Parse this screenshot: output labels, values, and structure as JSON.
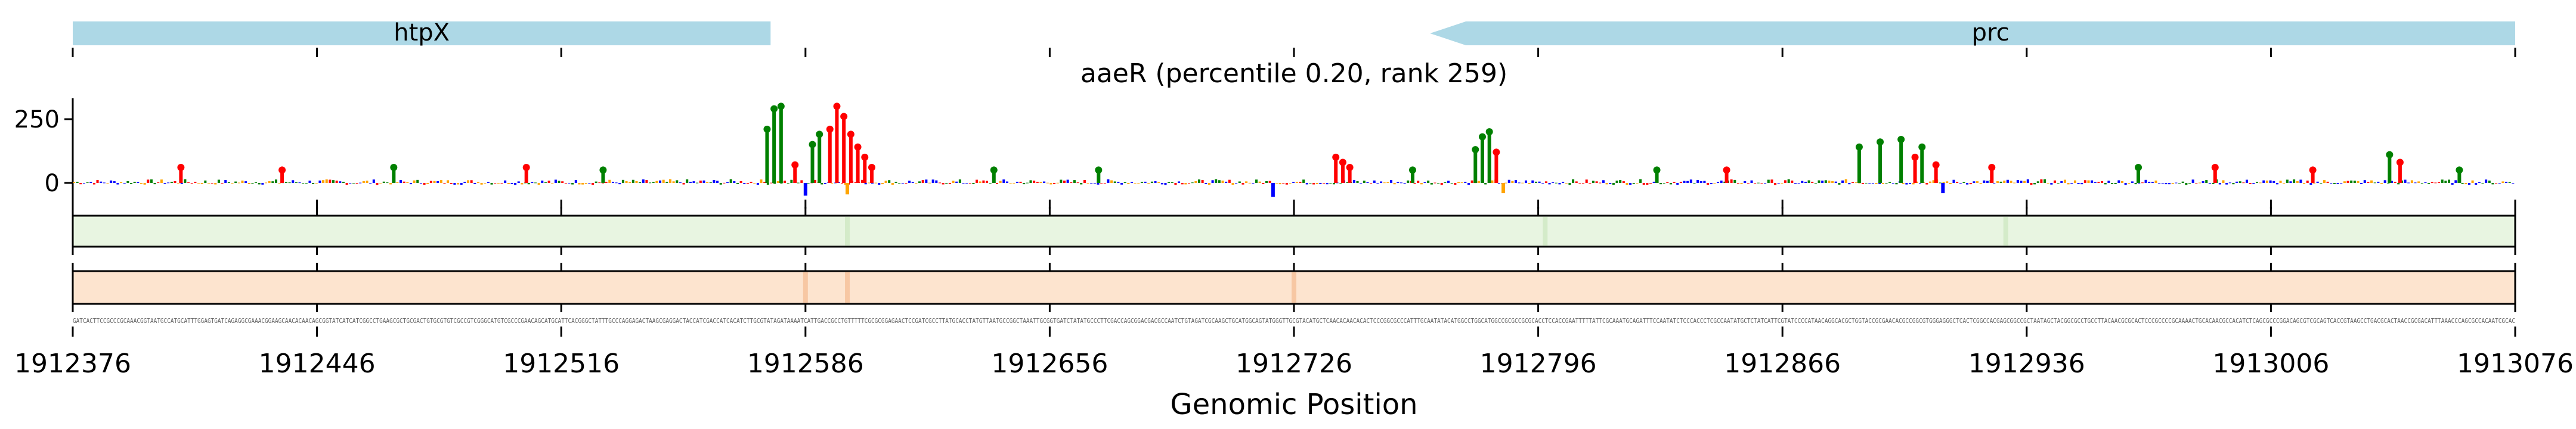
{
  "chart_data": {
    "type": "sequence-logo-track",
    "title": "aaeR (percentile 0.20, rank 259)",
    "xlabel": "Genomic Position",
    "ylabel": "",
    "xlim": [
      1912376,
      1913076
    ],
    "x_ticks": [
      "1912376",
      "1912446",
      "1912516",
      "1912586",
      "1912656",
      "1912726",
      "1912796",
      "1912866",
      "1912936",
      "1913006",
      "1913076"
    ],
    "ylim": [
      -40,
      360
    ],
    "y_ticks": [
      "250",
      "0"
    ],
    "genes": [
      {
        "name": "htpX",
        "start": 1912376,
        "end": 1912576,
        "strand": "+",
        "color": "#add8e6"
      },
      {
        "name": "prc",
        "start": 1912765,
        "end": 1913076,
        "strand": "-",
        "color": "#add8e6"
      }
    ],
    "base_colors": {
      "A": "#008000",
      "C": "#0000ff",
      "G": "#ffa500",
      "T": "#ff0000"
    },
    "peaks": [
      {
        "x": 1912575,
        "y": 220,
        "base": "A"
      },
      {
        "x": 1912577,
        "y": 300,
        "base": "A"
      },
      {
        "x": 1912579,
        "y": 310,
        "base": "A"
      },
      {
        "x": 1912583,
        "y": 80,
        "base": "T"
      },
      {
        "x": 1912588,
        "y": 160,
        "base": "A"
      },
      {
        "x": 1912590,
        "y": 200,
        "base": "A"
      },
      {
        "x": 1912593,
        "y": 220,
        "base": "T"
      },
      {
        "x": 1912595,
        "y": 310,
        "base": "T"
      },
      {
        "x": 1912597,
        "y": 270,
        "base": "T"
      },
      {
        "x": 1912599,
        "y": 200,
        "base": "T"
      },
      {
        "x": 1912601,
        "y": 150,
        "base": "T"
      },
      {
        "x": 1912603,
        "y": 110,
        "base": "T"
      },
      {
        "x": 1912605,
        "y": 70,
        "base": "T"
      },
      {
        "x": 1912586,
        "y": -50,
        "base": "C"
      },
      {
        "x": 1912598,
        "y": -45,
        "base": "G"
      },
      {
        "x": 1912738,
        "y": 110,
        "base": "T"
      },
      {
        "x": 1912740,
        "y": 90,
        "base": "T"
      },
      {
        "x": 1912742,
        "y": 70,
        "base": "T"
      },
      {
        "x": 1912720,
        "y": -55,
        "base": "C"
      },
      {
        "x": 1912778,
        "y": 140,
        "base": "A"
      },
      {
        "x": 1912780,
        "y": 190,
        "base": "A"
      },
      {
        "x": 1912782,
        "y": 210,
        "base": "A"
      },
      {
        "x": 1912784,
        "y": 130,
        "base": "T"
      },
      {
        "x": 1912786,
        "y": -40,
        "base": "G"
      },
      {
        "x": 1912888,
        "y": 150,
        "base": "A"
      },
      {
        "x": 1912894,
        "y": 170,
        "base": "A"
      },
      {
        "x": 1912900,
        "y": 180,
        "base": "A"
      },
      {
        "x": 1912906,
        "y": 150,
        "base": "A"
      },
      {
        "x": 1912904,
        "y": 110,
        "base": "T"
      },
      {
        "x": 1912910,
        "y": 80,
        "base": "T"
      },
      {
        "x": 1912912,
        "y": -40,
        "base": "C"
      },
      {
        "x": 1912926,
        "y": 70,
        "base": "T"
      },
      {
        "x": 1913040,
        "y": 120,
        "base": "A"
      },
      {
        "x": 1913043,
        "y": 90,
        "base": "T"
      },
      {
        "x": 1912407,
        "y": 70,
        "base": "T"
      },
      {
        "x": 1912436,
        "y": 60,
        "base": "T"
      },
      {
        "x": 1912468,
        "y": 70,
        "base": "A"
      },
      {
        "x": 1912506,
        "y": 70,
        "base": "T"
      },
      {
        "x": 1912528,
        "y": 60,
        "base": "A"
      },
      {
        "x": 1912640,
        "y": 60,
        "base": "A"
      },
      {
        "x": 1912670,
        "y": 60,
        "base": "A"
      },
      {
        "x": 1912760,
        "y": 60,
        "base": "A"
      },
      {
        "x": 1912830,
        "y": 60,
        "base": "A"
      },
      {
        "x": 1912850,
        "y": 60,
        "base": "T"
      },
      {
        "x": 1912968,
        "y": 70,
        "base": "A"
      },
      {
        "x": 1912990,
        "y": 70,
        "base": "T"
      },
      {
        "x": 1913018,
        "y": 60,
        "base": "T"
      },
      {
        "x": 1913060,
        "y": 60,
        "base": "A"
      }
    ],
    "heatmap_tracks": [
      {
        "color": "#e8f5e1",
        "highlights": [
          1912598,
          1912798,
          1912930
        ]
      },
      {
        "color": "#fde4cf",
        "highlights": [
          1912586,
          1912598,
          1912726
        ]
      }
    ],
    "sequence": "GATCACTTCCGCCCGCAAACGGTAATGCCATGCATTTGGAGTGATCAGAGGCGAAACGGAAGCAACACAACAGCGGTATCATCATCGGCCTGAAGCGCTGCGACTGTGCGTGTCGCCGTCGGGCATGTCGCCCGAACAGCATGCATTCACGGGCTATTTGCCCAGGAGACTAAGCGAGGACTACCATCGACCATCACATCTTGCGTATAGATAAAATCATTGACCGCCTGTTTTTCGCGCGGAGAACTCCGATCGCCTTATGCACCTATGTTAATGCCGGCTAAATTGCGGTGATCTATATGCCCTTCGACCAGCGGACGACGCCAATCTGTAGATCGCAAGCTGCATGGCAGTATGGGTTGCGTACATGCTCAACACAACACACTCCCGGCGCCCATTTGCAATATACATGGCCTGGCATGGCCGCGCCGCGCACCTCCACCGAATTTTTATTCGCAAATGCAGATTTCCAATATCTCCCACCCTCGCCAATATGCTCTATCATTCGTATCCCCATAACAGGCACGCTGGTACCGCGAACACGCCGGCGTGGGAGGGCTCACTCGGCCACGAGCGGCCGCTAATAGCTACGGCGCCTGCCTTACAACGCGCACTCCCGCCCCGCAAAACTGCACAACGCCACATCTCAGCGCCCGGACAGCGTCGCAGTCACCGTAAGCCTGACGCACTAACCGCGACATTTAAACCCAGCGCCACAATCGCAC"
  }
}
